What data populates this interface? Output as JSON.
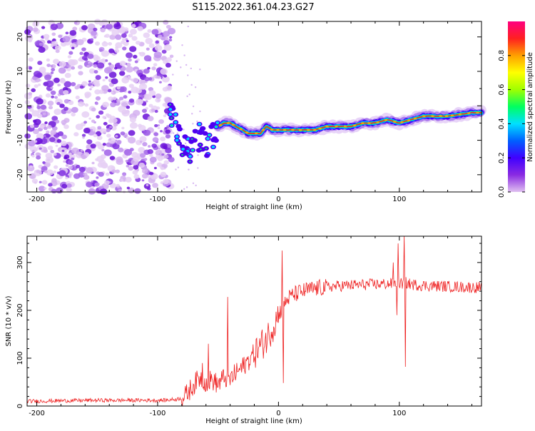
{
  "title": "S115.2022.361.04.23.G27",
  "chart_data": [
    {
      "type": "heatmap",
      "name": "spectrogram",
      "xlabel": "Height of straight line (km)",
      "ylabel": "Frequency (Hz)",
      "xlim": [
        -208,
        168
      ],
      "ylim": [
        -25,
        24.5
      ],
      "xticks": [
        -200,
        -100,
        0,
        100
      ],
      "yticks": [
        -20,
        -10,
        0,
        10,
        20
      ],
      "colorbar": {
        "label": "Normalized spectral amplitude",
        "range": [
          0,
          1
        ],
        "ticks": [
          "0.0",
          "0.2",
          "0.4",
          "0.6",
          "0.8"
        ],
        "colormap": [
          "#e0c0f0",
          "#8a2be2",
          "#4000ff",
          "#0060ff",
          "#00e0ff",
          "#00ff60",
          "#a0ff00",
          "#ffff00",
          "#ffa000",
          "#ff2020",
          "#ff0080"
        ]
      },
      "noise_region_x": [
        -208,
        -88
      ],
      "signal_ridge": {
        "x": [
          -90,
          -85,
          -80,
          -75,
          -70,
          -65,
          -60,
          -55,
          -50,
          -45,
          -40,
          -35,
          -30,
          -25,
          -20,
          -15,
          -10,
          -5,
          0,
          10,
          20,
          30,
          40,
          50,
          60,
          70,
          80,
          90,
          100,
          110,
          120,
          130,
          140,
          150,
          160,
          168
        ],
        "y": [
          -3,
          -6,
          -10,
          -13,
          -12,
          -9,
          -11,
          -9,
          -6,
          -5,
          -5,
          -6,
          -7,
          -8,
          -8,
          -8,
          -6,
          -7,
          -7,
          -7,
          -7,
          -7,
          -6,
          -6,
          -6,
          -5,
          -5,
          -4,
          -5,
          -4,
          -3,
          -3,
          -3,
          -2.5,
          -2,
          -2
        ]
      }
    },
    {
      "type": "line",
      "name": "snr",
      "xlabel": "Height of straight line (km)",
      "ylabel": "SNR (10 * v/v)",
      "xlim": [
        -208,
        168
      ],
      "ylim": [
        0,
        355
      ],
      "xticks": [
        -200,
        -100,
        0,
        100
      ],
      "yticks": [
        0,
        100,
        200,
        300
      ],
      "color": "#ee2020",
      "series": [
        {
          "x": [
            -208,
            -180,
            -150,
            -120,
            -95,
            -85,
            -78,
            -70,
            -65,
            -60,
            -55,
            -50,
            -45,
            -40,
            -35,
            -30,
            -25,
            -20,
            -15,
            -10,
            -5,
            0,
            2,
            5,
            8,
            12,
            18,
            25,
            35,
            45,
            55,
            65,
            75,
            85,
            95,
            100,
            105,
            110,
            120,
            130,
            140,
            150,
            160,
            168
          ],
          "y": [
            10,
            11,
            12,
            12,
            12,
            14,
            18,
            45,
            60,
            50,
            55,
            45,
            60,
            55,
            70,
            80,
            95,
            110,
            125,
            140,
            165,
            190,
            200,
            215,
            225,
            232,
            238,
            243,
            247,
            250,
            252,
            253,
            254,
            255,
            256,
            255,
            258,
            254,
            252,
            251,
            250,
            249,
            248,
            248
          ],
          "spikes": [
            {
              "x": -63,
              "y": 90
            },
            {
              "x": -58,
              "y": 130
            },
            {
              "x": -42,
              "y": 228
            },
            {
              "x": 3,
              "y": 325
            },
            {
              "x": 4,
              "y": 48
            },
            {
              "x": 95,
              "y": 300
            },
            {
              "x": 98,
              "y": 190
            },
            {
              "x": 99,
              "y": 340
            },
            {
              "x": 104,
              "y": 355
            },
            {
              "x": 105,
              "y": 82
            }
          ]
        }
      ]
    }
  ]
}
